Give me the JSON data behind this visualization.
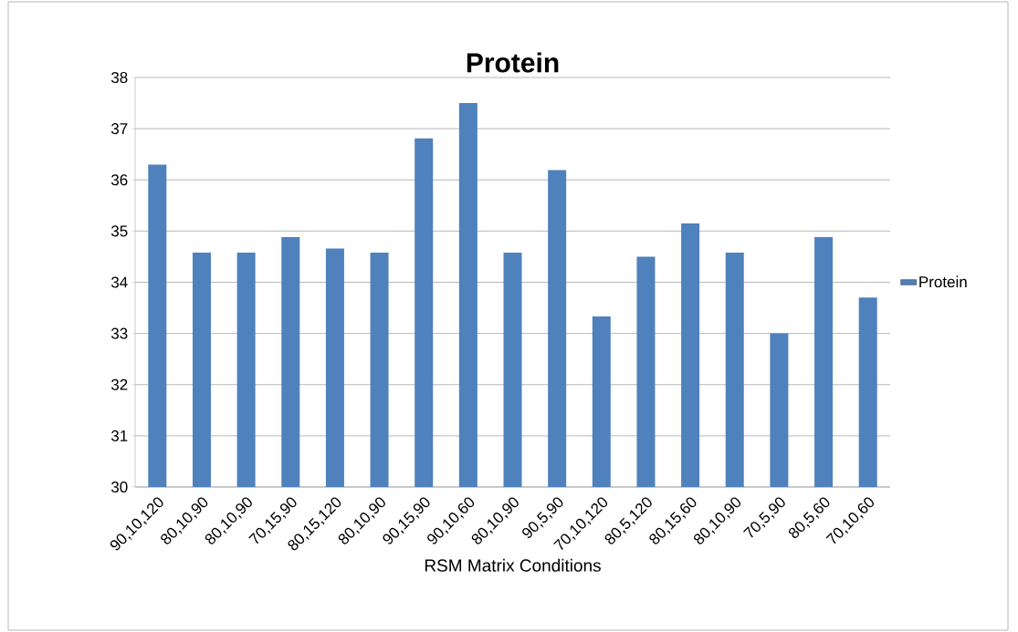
{
  "chart_data": {
    "type": "bar",
    "title": "Protein",
    "xlabel": "RSM Matrix  Conditions",
    "categories": [
      "90,10,120",
      "80,10,90",
      "80,10,90",
      "70,15,90",
      "80,15,120",
      "80,10,90",
      "90,15,90",
      "90,10,60",
      "80,10,90",
      "90,5,90",
      "70,10,120",
      "80,5,120",
      "80,15,60",
      "80,10,90",
      "70,5,90",
      "80,5,60",
      "70,10,60"
    ],
    "series": [
      {
        "name": "Protein",
        "color": "#4f81bd",
        "values": [
          36.3,
          34.58,
          34.58,
          34.88,
          34.66,
          34.58,
          36.81,
          37.5,
          34.58,
          36.19,
          33.33,
          34.5,
          35.15,
          34.58,
          33.0,
          34.88,
          33.7
        ]
      }
    ],
    "ylim": [
      30,
      38
    ],
    "yticks": [
      30,
      31,
      32,
      33,
      34,
      35,
      36,
      37,
      38
    ],
    "grid": "y",
    "legend": "right"
  }
}
